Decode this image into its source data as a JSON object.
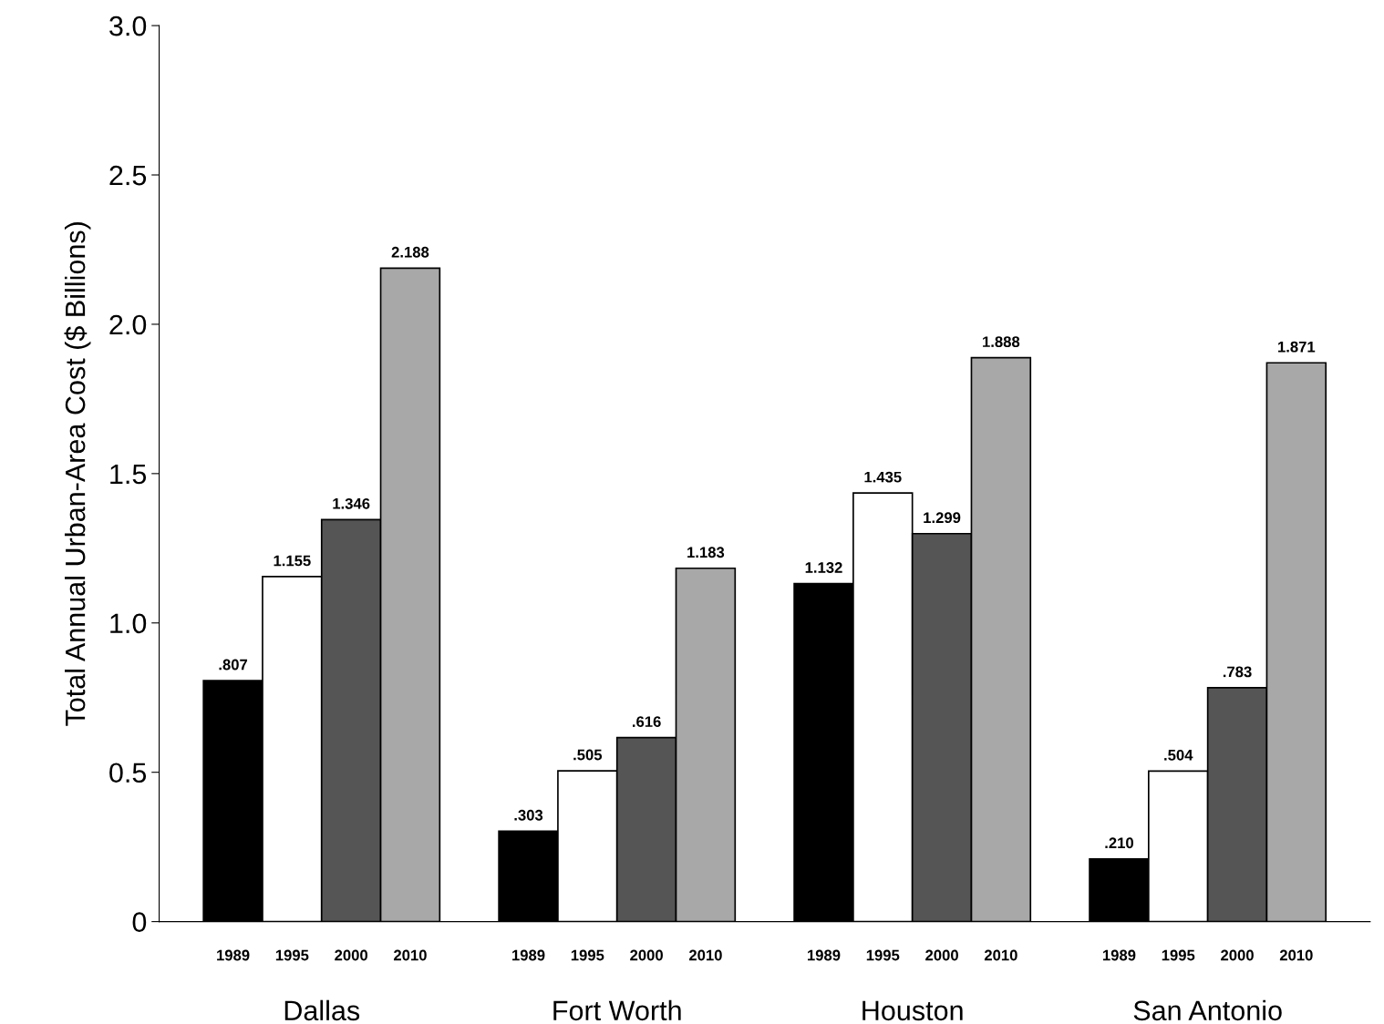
{
  "chart_data": {
    "type": "bar",
    "ylabel": "Total Annual Urban-Area Cost ($ Billions)",
    "categories": [
      "Dallas",
      "Fort Worth",
      "Houston",
      "San Antonio"
    ],
    "series": [
      {
        "name": "1989",
        "color": "#000000",
        "values": [
          0.807,
          0.303,
          1.132,
          0.21
        ],
        "value_labels": [
          ".807",
          ".303",
          "1.132",
          ".210"
        ]
      },
      {
        "name": "1995",
        "color": "#ffffff",
        "values": [
          1.155,
          0.505,
          1.435,
          0.504
        ],
        "value_labels": [
          "1.155",
          ".505",
          "1.435",
          ".504"
        ]
      },
      {
        "name": "2000",
        "color": "#555555",
        "values": [
          1.346,
          0.616,
          1.299,
          0.783
        ],
        "value_labels": [
          "1.346",
          ".616",
          "1.299",
          ".783"
        ]
      },
      {
        "name": "2010",
        "color": "#a8a8a8",
        "values": [
          2.188,
          1.183,
          1.888,
          1.871
        ],
        "value_labels": [
          "2.188",
          "1.183",
          "1.888",
          "1.871"
        ]
      }
    ],
    "ylim": [
      0,
      3.0
    ],
    "yticks": [
      0,
      0.5,
      {
        "value": 1.0,
        "label": "1.0"
      },
      1.5,
      {
        "value": 2.0,
        "label": "2.0"
      },
      2.5,
      {
        "value": 3.0,
        "label": "3.0"
      }
    ],
    "grid": false,
    "legend": false
  }
}
